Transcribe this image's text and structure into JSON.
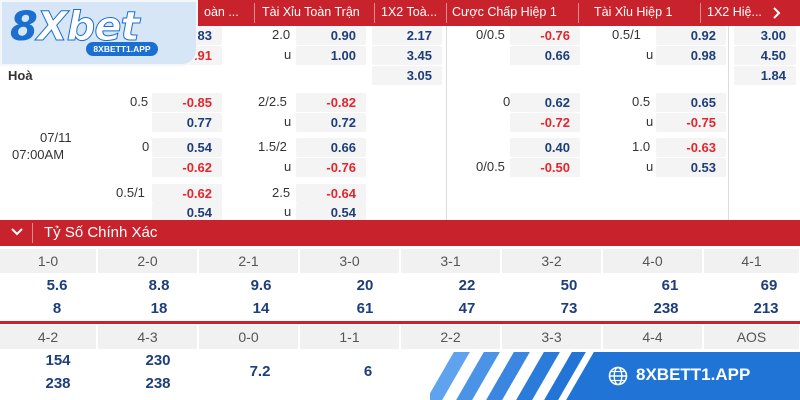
{
  "brand": {
    "logo_number": "8",
    "logo_word": "Xbet",
    "logo_url": "8XBETT1.APP",
    "accent": "#c8232c",
    "blue": "#1b6fd1"
  },
  "header": {
    "cols": [
      "oàn ...",
      "Tài Xỉu Toàn Trận",
      "1X2 Toà...",
      "Cược Chấp Hiệp 1",
      "Tài Xỉu Hiệp 1",
      "1X2 Hiệ..."
    ],
    "scroll_icon": "chevron-right-icon"
  },
  "match": {
    "date": "07/11",
    "time": "07:00AM",
    "draw_label": "Hoà"
  },
  "odds": {
    "row1": {
      "h1": "0.83",
      "h2": "-0.91",
      "ou_line": "2.0",
      "ou_u": "u",
      "ou1": "0.90",
      "ou2": "1.00",
      "x1": "2.17",
      "x2": "3.45",
      "x3": "3.05",
      "hh_line": "0/0.5",
      "hh1": "-0.76",
      "hh2": "0.66",
      "hou_line": "0.5/1",
      "hou_u": "u",
      "hou1": "0.92",
      "hou2": "0.98",
      "hx1": "3.00",
      "hx2": "4.50",
      "hx3": "1.84"
    },
    "row2": {
      "h_line": "0.5",
      "h1": "-0.85",
      "h2": "0.77",
      "ou_line": "2/2.5",
      "ou_u": "u",
      "ou1": "-0.82",
      "ou2": "0.72",
      "hh_line": "0",
      "hh1": "0.62",
      "hh2": "-0.72",
      "hou_line": "0.5",
      "hou_u": "u",
      "hou1": "0.65",
      "hou2": "-0.75"
    },
    "row3": {
      "h_line": "0",
      "h1": "0.54",
      "h2": "-0.62",
      "ou_line": "1.5/2",
      "ou_u": "u",
      "ou1": "0.66",
      "ou2": "-0.76",
      "hh_line": "0/0.5",
      "hh1": "0.40",
      "hh2": "-0.50",
      "hou_line": "1.0",
      "hou_u": "u",
      "hou1": "-0.63",
      "hou2": "0.53"
    },
    "row4": {
      "h_line": "0.5/1",
      "h1": "-0.62",
      "h2": "0.54",
      "ou_line": "2.5",
      "ou_u": "u",
      "ou1": "-0.64",
      "ou2": "0.54"
    }
  },
  "correct_score": {
    "title": "Tỷ Số Chính Xác",
    "row1": [
      {
        "score": "1-0",
        "a": "5.6",
        "b": "8"
      },
      {
        "score": "2-0",
        "a": "8.8",
        "b": "18"
      },
      {
        "score": "2-1",
        "a": "9.6",
        "b": "14"
      },
      {
        "score": "3-0",
        "a": "20",
        "b": "61"
      },
      {
        "score": "3-1",
        "a": "22",
        "b": "47"
      },
      {
        "score": "3-2",
        "a": "50",
        "b": "73"
      },
      {
        "score": "4-0",
        "a": "61",
        "b": "238"
      },
      {
        "score": "4-1",
        "a": "69",
        "b": "213"
      }
    ],
    "row2": [
      {
        "score": "4-2",
        "a": "154",
        "b": "238"
      },
      {
        "score": "4-3",
        "a": "230",
        "b": "238"
      },
      {
        "score": "0-0",
        "a": "7.2"
      },
      {
        "score": "1-1",
        "a": "6"
      },
      {
        "score": "2-2",
        "a": ""
      },
      {
        "score": "3-3",
        "a": ""
      },
      {
        "score": "4-4",
        "a": ""
      },
      {
        "score": "AOS",
        "a": ""
      }
    ]
  },
  "promo": {
    "url": "8XBETT1.APP",
    "icon": "globe-icon"
  }
}
